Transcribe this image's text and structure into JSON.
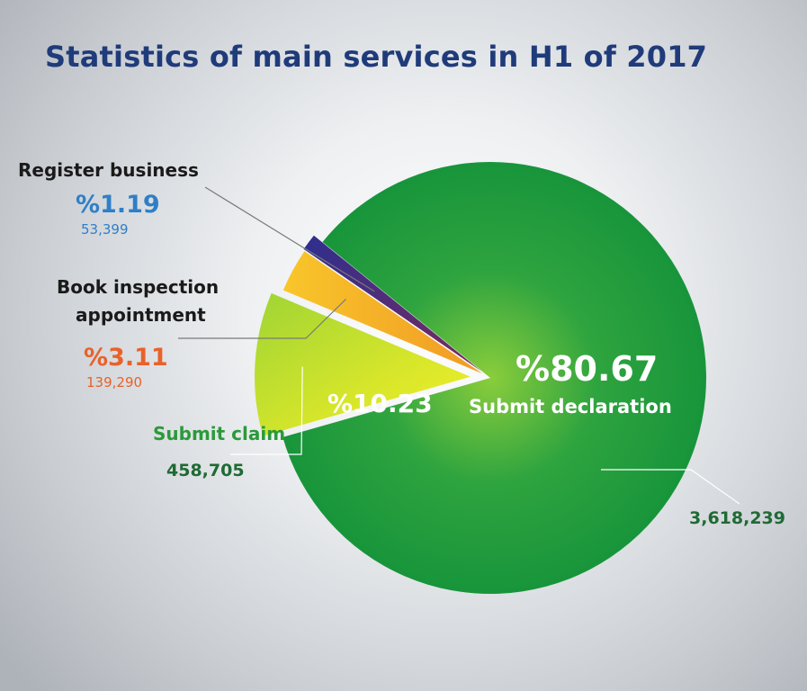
{
  "chart_data": {
    "type": "pie",
    "title": "Statistics of main services in H1 of 2017",
    "slices": [
      {
        "label": "Submit declaration",
        "percent_label": "%80.67",
        "count_label": "3,618,239",
        "value": 80.67,
        "color": "#1f9a3e"
      },
      {
        "label": "Submit claim",
        "percent_label": "%10.23",
        "count_label": "458,705",
        "value": 10.23,
        "color": "#c7e02e"
      },
      {
        "label": "Book inspection appointment",
        "label_lines": [
          "Book inspection",
          "appointment"
        ],
        "percent_label": "%3.11",
        "count_label": "139,290",
        "value": 3.11,
        "color": "#f6b826"
      },
      {
        "label": "Register business",
        "percent_label": "%1.19",
        "count_label": "53,399",
        "value": 1.19,
        "color": "#3a2f8c"
      }
    ]
  }
}
